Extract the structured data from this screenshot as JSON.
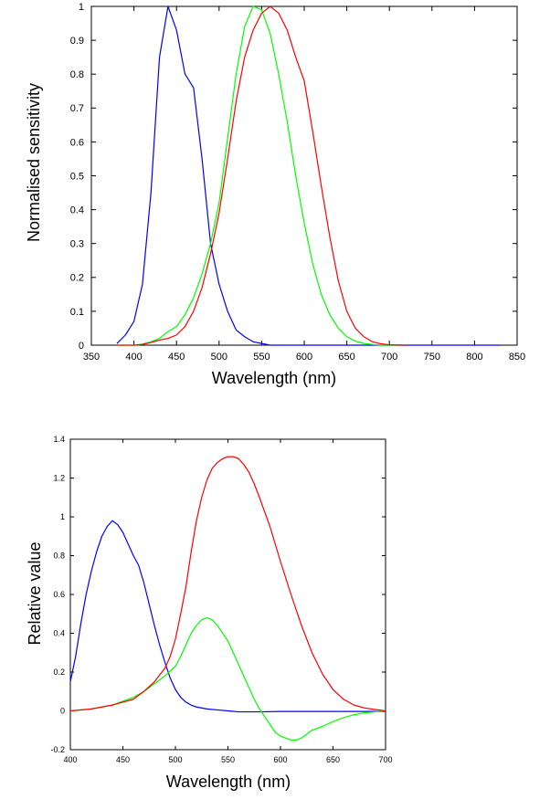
{
  "chart_data": [
    {
      "type": "line",
      "title": "",
      "xlabel": "Wavelength (nm)",
      "ylabel": "Normalised sensitivity",
      "xlim": [
        350,
        850
      ],
      "ylim": [
        0,
        1
      ],
      "x_ticks": [
        350,
        400,
        450,
        500,
        550,
        600,
        650,
        700,
        750,
        800,
        850
      ],
      "y_ticks": [
        0,
        0.1,
        0.2,
        0.3,
        0.4,
        0.5,
        0.6,
        0.7,
        0.8,
        0.9,
        1
      ],
      "grid": false,
      "legend": false,
      "series": [
        {
          "color": "#0000ff",
          "x": [
            380,
            390,
            400,
            410,
            420,
            430,
            440,
            450,
            460,
            470,
            480,
            490,
            500,
            510,
            520,
            530,
            540,
            550,
            560,
            580,
            600,
            650,
            700,
            750,
            800,
            830
          ],
          "values": [
            0.005,
            0.03,
            0.07,
            0.18,
            0.45,
            0.85,
            1.0,
            0.93,
            0.8,
            0.76,
            0.55,
            0.3,
            0.18,
            0.1,
            0.045,
            0.025,
            0.01,
            0.005,
            0.0,
            0.0,
            0.0,
            0.0,
            0.0,
            0.0,
            0.0,
            0.0
          ]
        },
        {
          "color": "#00ff00",
          "x": [
            380,
            390,
            400,
            410,
            420,
            430,
            440,
            450,
            460,
            470,
            480,
            490,
            500,
            510,
            520,
            530,
            540,
            550,
            560,
            570,
            580,
            590,
            600,
            610,
            620,
            630,
            640,
            650,
            660,
            670,
            680,
            690,
            700,
            720
          ],
          "values": [
            0.0,
            0.0,
            0.0,
            0.003,
            0.01,
            0.02,
            0.04,
            0.055,
            0.09,
            0.14,
            0.21,
            0.3,
            0.42,
            0.61,
            0.8,
            0.94,
            1.0,
            0.99,
            0.92,
            0.8,
            0.66,
            0.5,
            0.36,
            0.24,
            0.15,
            0.09,
            0.05,
            0.025,
            0.012,
            0.005,
            0.002,
            0.0,
            0.0,
            0.0
          ]
        },
        {
          "color": "#ff0000",
          "x": [
            380,
            390,
            400,
            410,
            420,
            430,
            440,
            450,
            460,
            470,
            480,
            490,
            500,
            510,
            520,
            530,
            540,
            550,
            560,
            570,
            580,
            590,
            600,
            610,
            620,
            630,
            640,
            650,
            660,
            670,
            680,
            690,
            700,
            720
          ],
          "values": [
            0.0,
            0.0,
            0.0,
            0.002,
            0.008,
            0.015,
            0.02,
            0.03,
            0.055,
            0.1,
            0.17,
            0.27,
            0.39,
            0.55,
            0.72,
            0.85,
            0.93,
            0.98,
            1.0,
            0.98,
            0.93,
            0.85,
            0.78,
            0.63,
            0.47,
            0.32,
            0.19,
            0.1,
            0.05,
            0.025,
            0.01,
            0.004,
            0.001,
            0.0
          ]
        }
      ]
    },
    {
      "type": "line",
      "title": "",
      "xlabel": "Wavelength (nm)",
      "ylabel": "Relative value",
      "xlim": [
        400,
        700
      ],
      "ylim": [
        -0.2,
        1.4
      ],
      "x_ticks": [
        400,
        450,
        500,
        550,
        600,
        650,
        700
      ],
      "y_ticks": [
        -0.2,
        0,
        0.2,
        0.4,
        0.6,
        0.8,
        1,
        1.2,
        1.4
      ],
      "grid": false,
      "legend": false,
      "series": [
        {
          "color": "#0000ff",
          "x": [
            400,
            405,
            410,
            415,
            420,
            425,
            430,
            435,
            440,
            445,
            450,
            455,
            460,
            465,
            470,
            475,
            480,
            485,
            490,
            495,
            500,
            505,
            510,
            515,
            520,
            530,
            540,
            550,
            560,
            580,
            600,
            620,
            640,
            660,
            680,
            700
          ],
          "values": [
            0.15,
            0.28,
            0.45,
            0.6,
            0.72,
            0.82,
            0.9,
            0.95,
            0.98,
            0.96,
            0.92,
            0.86,
            0.8,
            0.75,
            0.66,
            0.55,
            0.44,
            0.34,
            0.25,
            0.17,
            0.11,
            0.07,
            0.045,
            0.03,
            0.02,
            0.01,
            0.005,
            0.0,
            -0.005,
            -0.005,
            -0.003,
            -0.003,
            -0.003,
            -0.003,
            -0.003,
            -0.003
          ]
        },
        {
          "color": "#00ff00",
          "x": [
            400,
            420,
            440,
            460,
            470,
            480,
            490,
            500,
            505,
            510,
            515,
            520,
            525,
            530,
            535,
            540,
            545,
            550,
            555,
            560,
            565,
            570,
            575,
            580,
            585,
            590,
            595,
            600,
            605,
            610,
            615,
            620,
            625,
            630,
            640,
            650,
            660,
            670,
            680,
            690,
            700
          ],
          "values": [
            0.0,
            0.01,
            0.03,
            0.07,
            0.1,
            0.14,
            0.18,
            0.23,
            0.28,
            0.34,
            0.4,
            0.44,
            0.47,
            0.48,
            0.47,
            0.44,
            0.4,
            0.36,
            0.3,
            0.24,
            0.18,
            0.12,
            0.06,
            0.01,
            -0.03,
            -0.07,
            -0.11,
            -0.13,
            -0.14,
            -0.15,
            -0.15,
            -0.14,
            -0.12,
            -0.1,
            -0.08,
            -0.055,
            -0.035,
            -0.02,
            -0.01,
            -0.005,
            0.0
          ]
        },
        {
          "color": "#ff0000",
          "x": [
            400,
            420,
            440,
            460,
            470,
            480,
            490,
            495,
            500,
            505,
            510,
            515,
            520,
            525,
            530,
            535,
            540,
            545,
            550,
            555,
            560,
            565,
            570,
            575,
            580,
            590,
            600,
            610,
            620,
            630,
            640,
            650,
            660,
            670,
            680,
            690,
            700
          ],
          "values": [
            0.0,
            0.01,
            0.03,
            0.06,
            0.1,
            0.15,
            0.22,
            0.28,
            0.37,
            0.5,
            0.64,
            0.82,
            0.98,
            1.1,
            1.19,
            1.25,
            1.28,
            1.3,
            1.31,
            1.31,
            1.3,
            1.27,
            1.23,
            1.17,
            1.1,
            0.95,
            0.77,
            0.6,
            0.44,
            0.3,
            0.19,
            0.11,
            0.06,
            0.03,
            0.015,
            0.007,
            0.0
          ]
        }
      ]
    }
  ]
}
